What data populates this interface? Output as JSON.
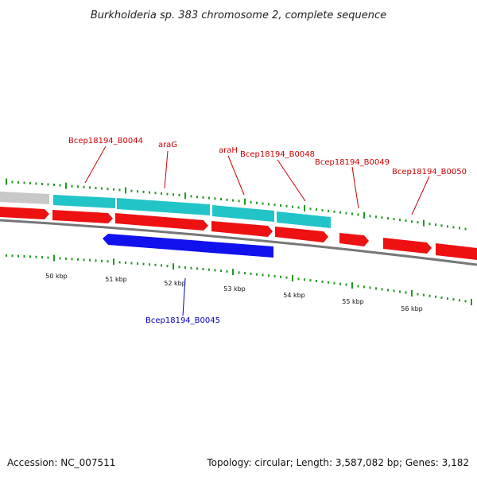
{
  "title": "Burkholderia sp. 383 chromosome 2, complete sequence",
  "footer": {
    "accession": "Accession: NC_007511",
    "summary": "Topology: circular; Length: 3,587,082 bp; Genes: 3,182"
  },
  "colors": {
    "forward_gene": "#ee1111",
    "reverse_gene": "#1111ee",
    "feature_cyan": "#22c4c8",
    "feature_grey": "#c8c8c8",
    "backbone": "#777777",
    "ticks": "#229922",
    "forward_label": "#cc0000",
    "reverse_label": "#0000bb"
  },
  "ruler": {
    "ticks": [
      "50 kbp",
      "51 kbp",
      "52 kbp",
      "53 kbp",
      "54 kbp",
      "55 kbp",
      "56 kbp"
    ]
  },
  "gene_labels": {
    "forward": [
      "Bcep18194_B0044",
      "araG",
      "araH",
      "Bcep18194_B0048",
      "Bcep18194_B0049",
      "Bcep18194_B0050"
    ],
    "reverse": [
      "Bcep18194_B0045"
    ]
  }
}
